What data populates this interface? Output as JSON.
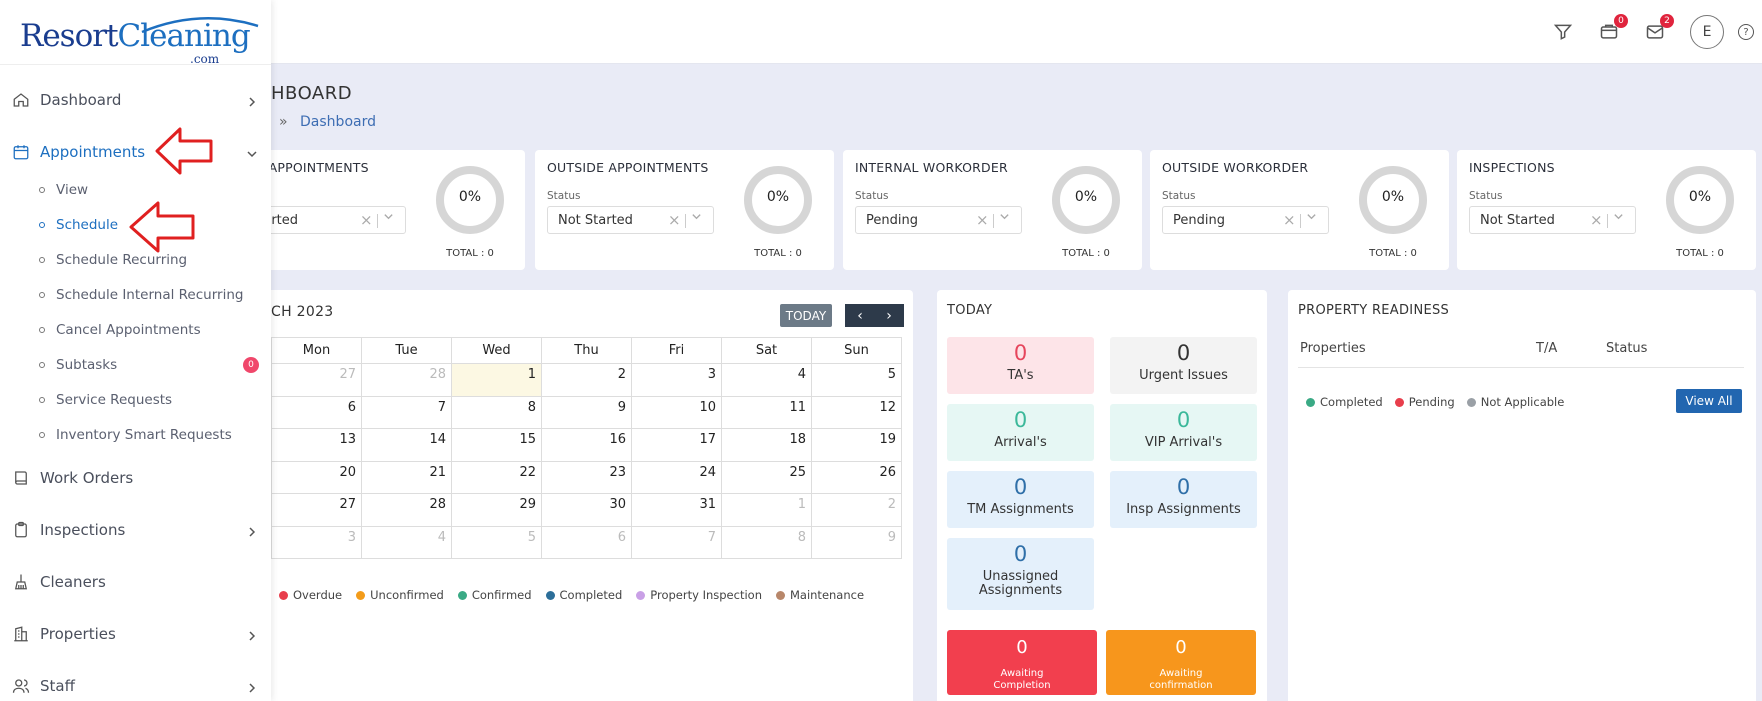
{
  "sidebar": {
    "logo": {
      "word1": "Resort",
      "word2": "Cleaning",
      "suffix": ".com"
    },
    "items": [
      {
        "label": "Dashboard",
        "icon": "home-icon",
        "chevron": "right"
      },
      {
        "label": "Appointments",
        "icon": "calendar-icon",
        "chevron": "down",
        "active": true
      },
      {
        "label": "Work Orders",
        "icon": "book-icon"
      },
      {
        "label": "Inspections",
        "icon": "clipboard-icon",
        "chevron": "right"
      },
      {
        "label": "Cleaners",
        "icon": "broom-icon"
      },
      {
        "label": "Properties",
        "icon": "building-icon",
        "chevron": "right"
      },
      {
        "label": "Staff",
        "icon": "users-icon",
        "chevron": "right"
      }
    ],
    "appointments_sub": [
      {
        "label": "View"
      },
      {
        "label": "Schedule",
        "active": true
      },
      {
        "label": "Schedule Recurring"
      },
      {
        "label": "Schedule Internal Recurring"
      },
      {
        "label": "Cancel Appointments"
      },
      {
        "label": "Subtasks",
        "badge": "0"
      },
      {
        "label": "Service Requests"
      },
      {
        "label": "Inventory Smart Requests"
      }
    ]
  },
  "topbar": {
    "notif_badge": "0",
    "mail_badge": "2",
    "avatar_letter": "E",
    "help": "?"
  },
  "page": {
    "title": "HBOARD",
    "breadcrumb_sep": "»",
    "breadcrumb": "Dashboard"
  },
  "stats": [
    {
      "title": "NAL APPOINTMENTS",
      "status_label": "",
      "status": "Started",
      "percent": "0%",
      "total": "TOTAL : 0"
    },
    {
      "title": "OUTSIDE APPOINTMENTS",
      "status_label": "Status",
      "status": "Not Started",
      "percent": "0%",
      "total": "TOTAL : 0"
    },
    {
      "title": "INTERNAL WORKORDER",
      "status_label": "Status",
      "status": "Pending",
      "percent": "0%",
      "total": "TOTAL : 0"
    },
    {
      "title": "OUTSIDE WORKORDER",
      "status_label": "Status",
      "status": "Pending",
      "percent": "0%",
      "total": "TOTAL : 0"
    },
    {
      "title": "INSPECTIONS",
      "status_label": "Status",
      "status": "Not Started",
      "percent": "0%",
      "total": "TOTAL : 0"
    }
  ],
  "calendar": {
    "title": "CH 2023",
    "today_label": "TODAY",
    "prev": "‹",
    "next": "›",
    "days": [
      "Mon",
      "Tue",
      "Wed",
      "Thu",
      "Fri",
      "Sat",
      "Sun"
    ],
    "weeks": [
      [
        "27",
        "28",
        "1",
        "2",
        "3",
        "4",
        "5"
      ],
      [
        "6",
        "7",
        "8",
        "9",
        "10",
        "11",
        "12"
      ],
      [
        "13",
        "14",
        "15",
        "16",
        "17",
        "18",
        "19"
      ],
      [
        "20",
        "21",
        "22",
        "23",
        "24",
        "25",
        "26"
      ],
      [
        "27",
        "28",
        "29",
        "30",
        "31",
        "1",
        "2"
      ],
      [
        "3",
        "4",
        "5",
        "6",
        "7",
        "8",
        "9"
      ]
    ],
    "legend": [
      {
        "label": "Overdue",
        "color": "#e83e4c"
      },
      {
        "label": "Unconfirmed",
        "color": "#f39c1a"
      },
      {
        "label": "Confirmed",
        "color": "#3aaa85"
      },
      {
        "label": "Completed",
        "color": "#2c6e99"
      },
      {
        "label": "Property Inspection",
        "color": "#c9a0e6"
      },
      {
        "label": "Maintenance",
        "color": "#b8876a"
      }
    ]
  },
  "today": {
    "title": "TODAY",
    "tiles": [
      {
        "num": "0",
        "label": "TA's",
        "bg": "#fde4e8",
        "color": "#e6455c"
      },
      {
        "num": "0",
        "label": "Urgent Issues",
        "bg": "#f3f3f3",
        "color": "#333333"
      },
      {
        "num": "0",
        "label": "Arrival's",
        "bg": "#e6f7f4",
        "color": "#3bb89a"
      },
      {
        "num": "0",
        "label": "VIP Arrival's",
        "bg": "#e6f7f4",
        "color": "#3bb89a"
      },
      {
        "num": "0",
        "label": "TM Assignments",
        "bg": "#e4f0fb",
        "color": "#2f6fa8"
      },
      {
        "num": "0",
        "label": "Insp Assignments",
        "bg": "#e4f0fb",
        "color": "#2f6fa8"
      },
      {
        "num": "0",
        "label": "Unassigned Assignments",
        "bg": "#e4f0fb",
        "color": "#2f6fa8"
      }
    ],
    "big_tiles": [
      {
        "num": "0",
        "label": "Awaiting Completion",
        "bg": "#f23f4e"
      },
      {
        "num": "0",
        "label": "Awaiting confirmation",
        "bg": "#f7961c"
      }
    ]
  },
  "property_readiness": {
    "title": "PROPERTY READINESS",
    "columns": [
      "Properties",
      "T/A",
      "Status"
    ],
    "legend": [
      {
        "label": "Completed",
        "color": "#3aaa85"
      },
      {
        "label": "Pending",
        "color": "#e83e4c"
      },
      {
        "label": "Not Applicable",
        "color": "#9aa0a6"
      }
    ],
    "view_all": "View All"
  }
}
